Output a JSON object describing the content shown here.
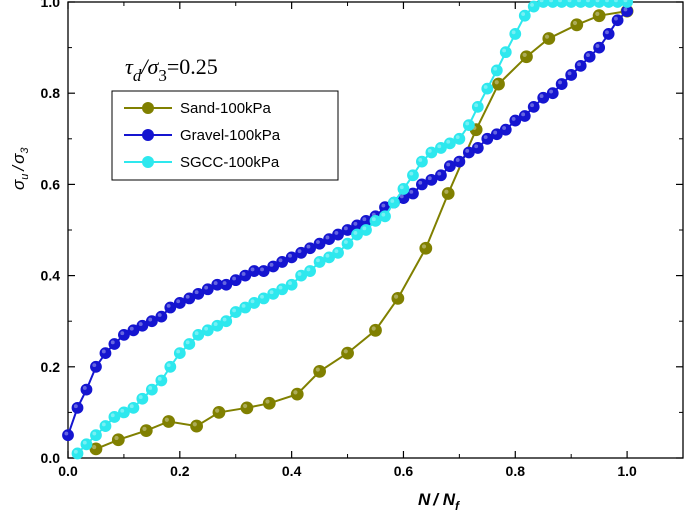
{
  "chart_data": {
    "type": "line",
    "xlabel": {
      "main": "N",
      "sep": "/ ",
      "base": "N",
      "sub": "f"
    },
    "ylabel": {
      "num": "σ",
      "num_sub": "u",
      "sep": "/",
      "den": "σ",
      "den_sub": "3"
    },
    "annotation": {
      "a": "τ",
      "a_sub": "d",
      "sep": "/",
      "b": "σ",
      "b_sub": "3",
      "value": "=0.25"
    },
    "xlim": [
      0,
      1.1
    ],
    "ylim": [
      0,
      1.0
    ],
    "xticks": [
      0.0,
      0.2,
      0.4,
      0.6,
      0.8,
      1.0
    ],
    "yticks": [
      0.0,
      0.2,
      0.4,
      0.6,
      0.8,
      1.0
    ],
    "xtick_labels": [
      "0.0",
      "0.2",
      "0.4",
      "0.6",
      "0.8",
      "1.0"
    ],
    "ytick_labels": [
      "0.0",
      "0.2",
      "0.4",
      "0.6",
      "0.8",
      "1.0"
    ],
    "grid": false,
    "legend_position": "top-left",
    "series": [
      {
        "name": "Sand-100kPa",
        "color": "#808000",
        "marker_size": 6,
        "x": [
          0.05,
          0.09,
          0.14,
          0.18,
          0.23,
          0.27,
          0.32,
          0.36,
          0.41,
          0.45,
          0.5,
          0.55,
          0.59,
          0.64,
          0.68,
          0.73,
          0.77,
          0.82,
          0.86,
          0.91,
          0.95,
          1.0
        ],
        "y": [
          0.02,
          0.04,
          0.06,
          0.08,
          0.07,
          0.1,
          0.11,
          0.12,
          0.14,
          0.19,
          0.23,
          0.28,
          0.35,
          0.46,
          0.58,
          0.72,
          0.82,
          0.88,
          0.92,
          0.95,
          0.97,
          0.98
        ]
      },
      {
        "name": "Gravel-100kPa",
        "color": "#1515d0",
        "marker_size": 5.5,
        "x": [
          0.0,
          0.017,
          0.033,
          0.05,
          0.067,
          0.083,
          0.1,
          0.117,
          0.133,
          0.15,
          0.167,
          0.183,
          0.2,
          0.217,
          0.233,
          0.25,
          0.267,
          0.283,
          0.3,
          0.317,
          0.333,
          0.35,
          0.367,
          0.383,
          0.4,
          0.417,
          0.433,
          0.45,
          0.467,
          0.483,
          0.5,
          0.517,
          0.533,
          0.55,
          0.567,
          0.583,
          0.6,
          0.617,
          0.633,
          0.65,
          0.667,
          0.683,
          0.7,
          0.717,
          0.733,
          0.75,
          0.767,
          0.783,
          0.8,
          0.817,
          0.833,
          0.85,
          0.867,
          0.883,
          0.9,
          0.917,
          0.933,
          0.95,
          0.967,
          0.983,
          1.0
        ],
        "y": [
          0.05,
          0.11,
          0.15,
          0.2,
          0.23,
          0.25,
          0.27,
          0.28,
          0.29,
          0.3,
          0.31,
          0.33,
          0.34,
          0.35,
          0.36,
          0.37,
          0.38,
          0.38,
          0.39,
          0.4,
          0.41,
          0.41,
          0.42,
          0.43,
          0.44,
          0.45,
          0.46,
          0.47,
          0.48,
          0.49,
          0.5,
          0.51,
          0.52,
          0.53,
          0.55,
          0.56,
          0.57,
          0.58,
          0.6,
          0.61,
          0.62,
          0.64,
          0.65,
          0.67,
          0.68,
          0.7,
          0.71,
          0.72,
          0.74,
          0.75,
          0.77,
          0.79,
          0.8,
          0.82,
          0.84,
          0.86,
          0.88,
          0.9,
          0.93,
          0.96,
          0.98
        ]
      },
      {
        "name": "SGCC-100kPa",
        "color": "#2ee8ee",
        "marker_size": 5.5,
        "x": [
          0.017,
          0.033,
          0.05,
          0.067,
          0.083,
          0.1,
          0.117,
          0.133,
          0.15,
          0.167,
          0.183,
          0.2,
          0.217,
          0.233,
          0.25,
          0.267,
          0.283,
          0.3,
          0.317,
          0.333,
          0.35,
          0.367,
          0.383,
          0.4,
          0.417,
          0.433,
          0.45,
          0.467,
          0.483,
          0.5,
          0.517,
          0.533,
          0.55,
          0.567,
          0.583,
          0.6,
          0.617,
          0.633,
          0.65,
          0.667,
          0.683,
          0.7,
          0.717,
          0.733,
          0.75,
          0.767,
          0.783,
          0.8,
          0.817,
          0.833,
          0.85,
          0.867,
          0.883,
          0.9,
          0.917,
          0.933,
          0.95,
          0.967,
          0.983,
          1.0
        ],
        "y": [
          0.01,
          0.03,
          0.05,
          0.07,
          0.09,
          0.1,
          0.11,
          0.13,
          0.15,
          0.17,
          0.2,
          0.23,
          0.25,
          0.27,
          0.28,
          0.29,
          0.3,
          0.32,
          0.33,
          0.34,
          0.35,
          0.36,
          0.37,
          0.38,
          0.4,
          0.41,
          0.43,
          0.44,
          0.45,
          0.47,
          0.49,
          0.5,
          0.52,
          0.53,
          0.56,
          0.59,
          0.62,
          0.65,
          0.67,
          0.68,
          0.69,
          0.7,
          0.73,
          0.77,
          0.81,
          0.85,
          0.89,
          0.93,
          0.97,
          0.99,
          1.0,
          1.0,
          1.0,
          1.0,
          1.0,
          1.0,
          1.0,
          1.0,
          1.0,
          1.0
        ]
      }
    ]
  }
}
